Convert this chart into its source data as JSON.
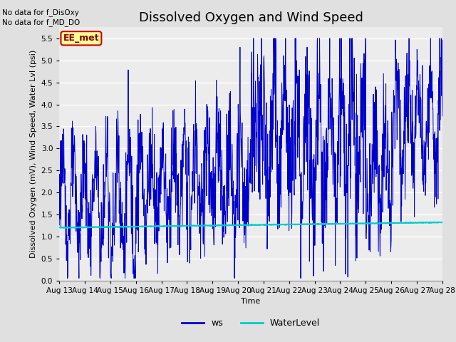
{
  "title": "Dissolved Oxygen and Wind Speed",
  "ylabel": "Dissolved Oxygen (mV), Wind Speed, Water Lvl (psi)",
  "xlabel": "Time",
  "text_no_data_1": "No data for f_DisOxy",
  "text_no_data_2": "No data for f_MD_DO",
  "legend_box_label": "EE_met",
  "legend_box_color": "#ffff99",
  "legend_box_edge": "#cc0000",
  "ylim": [
    0.0,
    5.75
  ],
  "yticks": [
    0.0,
    0.5,
    1.0,
    1.5,
    2.0,
    2.5,
    3.0,
    3.5,
    4.0,
    4.5,
    5.0,
    5.5
  ],
  "date_labels": [
    "Aug 13",
    "Aug 14",
    "Aug 15",
    "Aug 16",
    "Aug 17",
    "Aug 18",
    "Aug 19",
    "Aug 20",
    "Aug 21",
    "Aug 22",
    "Aug 23",
    "Aug 24",
    "Aug 25",
    "Aug 26",
    "Aug 27",
    "Aug 28"
  ],
  "ws_color": "#0000cc",
  "water_level_color": "#00cccc",
  "background_color": "#e0e0e0",
  "plot_bg_color": "#ececec",
  "grid_color": "#ffffff",
  "title_fontsize": 13,
  "label_fontsize": 8,
  "tick_fontsize": 7.5,
  "legend_fontsize": 9
}
